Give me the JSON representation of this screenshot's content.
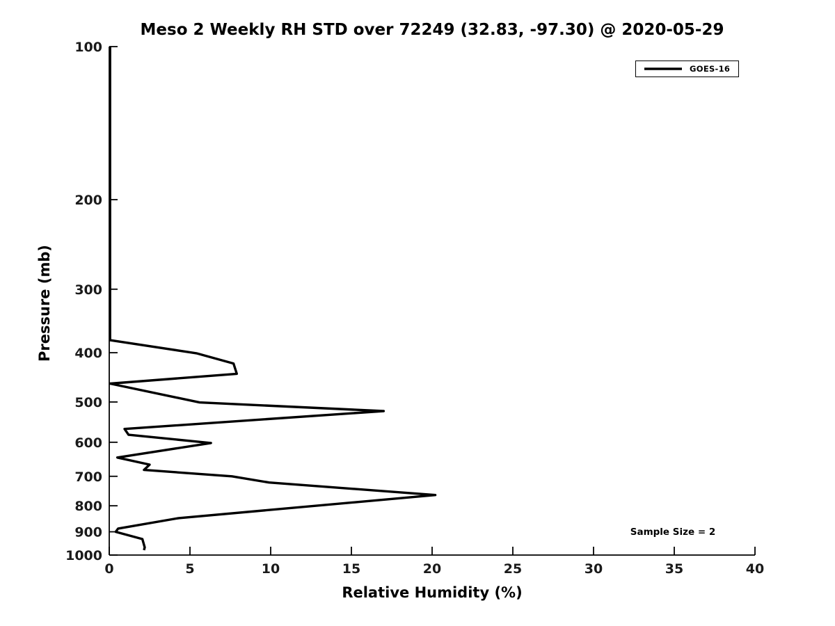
{
  "colors": {
    "background": "#ffffff",
    "axis": "#000000",
    "tick_label": "#1a1a1a",
    "series_line": "#000000"
  },
  "chart_data": {
    "type": "line",
    "title": "Meso 2 Weekly RH STD over 72249 (32.83, -97.30) @ 2020-05-29",
    "xlabel": "Relative Humidity (%)",
    "ylabel": "Pressure (mb)",
    "xlim": [
      0,
      40
    ],
    "ylim": [
      1000,
      100
    ],
    "yscale": "log",
    "y_axis_inverted": true,
    "grid": false,
    "xticks": [
      0,
      5,
      10,
      15,
      20,
      25,
      30,
      35,
      40
    ],
    "yticks": [
      100,
      200,
      300,
      400,
      500,
      600,
      700,
      800,
      900,
      1000
    ],
    "legend": {
      "position": "top-right",
      "entries": [
        {
          "label": "GOES-16",
          "color": "#000000"
        }
      ]
    },
    "annotations": [
      {
        "text": "Sample Size = 2"
      }
    ],
    "series": [
      {
        "name": "GOES-16",
        "color": "#000000",
        "points_rh_vs_pressure_mb": [
          [
            0.05,
            100
          ],
          [
            0.05,
            150
          ],
          [
            0.05,
            200
          ],
          [
            0.05,
            250
          ],
          [
            0.05,
            300
          ],
          [
            0.05,
            350
          ],
          [
            0.05,
            378
          ],
          [
            5.4,
            401
          ],
          [
            7.7,
            420
          ],
          [
            7.9,
            440
          ],
          [
            0.05,
            460
          ],
          [
            5.6,
            501
          ],
          [
            17.0,
            521
          ],
          [
            0.95,
            565
          ],
          [
            1.2,
            580
          ],
          [
            6.3,
            602
          ],
          [
            0.5,
            643
          ],
          [
            2.5,
            664
          ],
          [
            2.15,
            680
          ],
          [
            7.6,
            700
          ],
          [
            9.9,
            720
          ],
          [
            20.2,
            762
          ],
          [
            4.3,
            846
          ],
          [
            0.55,
            887
          ],
          [
            0.4,
            900
          ],
          [
            2.05,
            930
          ],
          [
            2.2,
            966
          ],
          [
            2.15,
            978
          ]
        ]
      }
    ]
  }
}
